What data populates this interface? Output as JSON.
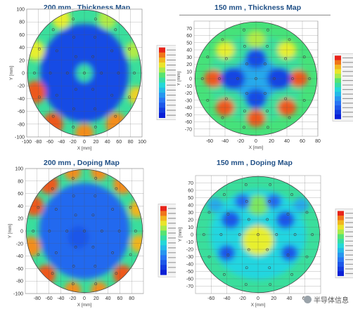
{
  "chart_data": [
    {
      "type": "heatmap",
      "title": "200 mm , Thickness Map",
      "xlabel": "X [mm]",
      "ylabel": "Y [mm]",
      "xlim": [
        -100,
        100
      ],
      "ylim": [
        -100,
        100
      ],
      "xticks": [
        -100,
        -80,
        -60,
        -40,
        -20,
        0,
        20,
        40,
        60,
        80,
        100
      ],
      "yticks": [
        -100,
        -80,
        -60,
        -40,
        -20,
        0,
        20,
        40,
        60,
        80,
        100
      ],
      "grid": true,
      "colorbar": "right",
      "hotspots": [
        {
          "x": 0,
          "y": 0,
          "value": 0.05,
          "r": 8
        },
        {
          "x": 0,
          "y": 0,
          "value": 0.55,
          "r": 14
        },
        {
          "x": -85,
          "y": -30,
          "value": 0.95,
          "r": 18
        },
        {
          "x": -55,
          "y": -80,
          "value": 0.95,
          "r": 18
        },
        {
          "x": 0,
          "y": -95,
          "value": 0.9,
          "r": 16
        },
        {
          "x": 55,
          "y": -80,
          "value": 0.9,
          "r": 18
        },
        {
          "x": 90,
          "y": -35,
          "value": 0.8,
          "r": 14
        },
        {
          "x": -85,
          "y": 35,
          "value": 0.75,
          "r": 16
        },
        {
          "x": -40,
          "y": 85,
          "value": 0.75,
          "r": 16
        },
        {
          "x": 40,
          "y": 85,
          "value": 0.7,
          "r": 16
        },
        {
          "x": 85,
          "y": 35,
          "value": 0.7,
          "r": 14
        }
      ]
    },
    {
      "type": "heatmap",
      "title": "150 mm , Thickness Map",
      "xlabel": "X [mm]",
      "ylabel": "Y [mm]",
      "xlim": [
        -80,
        80
      ],
      "ylim": [
        -80,
        80
      ],
      "xticks": [
        -60,
        -40,
        -20,
        0,
        20,
        40,
        60,
        80
      ],
      "yticks": [
        -70,
        -60,
        -50,
        -40,
        -30,
        -20,
        -10,
        0,
        10,
        20,
        30,
        40,
        50,
        60,
        70
      ],
      "grid": true,
      "colorbar": "right",
      "hotspots": [
        {
          "x": -55,
          "y": 0,
          "value": 0.95,
          "r": 12
        },
        {
          "x": 55,
          "y": 0,
          "value": 0.95,
          "r": 12
        },
        {
          "x": -40,
          "y": -40,
          "value": 0.95,
          "r": 12
        },
        {
          "x": 40,
          "y": -40,
          "value": 0.95,
          "r": 12
        },
        {
          "x": 0,
          "y": -55,
          "value": 0.95,
          "r": 12
        },
        {
          "x": -40,
          "y": 40,
          "value": 0.75,
          "r": 12
        },
        {
          "x": 40,
          "y": 40,
          "value": 0.75,
          "r": 12
        },
        {
          "x": 0,
          "y": 55,
          "value": 0.7,
          "r": 12
        },
        {
          "x": 0,
          "y": 0,
          "value": 0.35,
          "r": 30
        },
        {
          "x": -30,
          "y": 0,
          "value": 0.1,
          "r": 16
        },
        {
          "x": 30,
          "y": 0,
          "value": 0.1,
          "r": 16
        },
        {
          "x": 0,
          "y": 28,
          "value": 0.12,
          "r": 14
        },
        {
          "x": 0,
          "y": -28,
          "value": 0.12,
          "r": 14
        }
      ]
    },
    {
      "type": "heatmap",
      "title": "200 mm , Doping Map",
      "xlabel": "X [mm]",
      "ylabel": "Y [mm]",
      "xlim": [
        -100,
        100
      ],
      "ylim": [
        -100,
        100
      ],
      "xticks": [
        -80,
        -60,
        -40,
        -20,
        0,
        20,
        40,
        60,
        80
      ],
      "yticks": [
        -100,
        -80,
        -60,
        -40,
        -20,
        0,
        20,
        40,
        60,
        80,
        100
      ],
      "grid": true,
      "colorbar": "right",
      "hotspots": [
        {
          "x": -85,
          "y": 40,
          "value": 0.95,
          "r": 16
        },
        {
          "x": -60,
          "y": 75,
          "value": 0.95,
          "r": 16
        },
        {
          "x": -20,
          "y": 95,
          "value": 0.9,
          "r": 14
        },
        {
          "x": 25,
          "y": 95,
          "value": 0.9,
          "r": 14
        },
        {
          "x": 65,
          "y": 75,
          "value": 0.9,
          "r": 16
        },
        {
          "x": 90,
          "y": 35,
          "value": 0.85,
          "r": 14
        },
        {
          "x": -90,
          "y": -25,
          "value": 0.9,
          "r": 16
        },
        {
          "x": -65,
          "y": -70,
          "value": 0.95,
          "r": 16
        },
        {
          "x": -20,
          "y": -95,
          "value": 0.9,
          "r": 14
        },
        {
          "x": 25,
          "y": -95,
          "value": 0.9,
          "r": 14
        },
        {
          "x": 65,
          "y": -70,
          "value": 0.95,
          "r": 16
        },
        {
          "x": 92,
          "y": -20,
          "value": 0.85,
          "r": 14
        },
        {
          "x": -10,
          "y": -10,
          "value": 0.15,
          "r": 18
        }
      ]
    },
    {
      "type": "heatmap",
      "title": "150 mm , Doping Map",
      "xlabel": "X [mm]",
      "ylabel": "Y [mm]",
      "xlim": [
        -80,
        80
      ],
      "ylim": [
        -80,
        80
      ],
      "xticks": [
        -60,
        -40,
        -20,
        0,
        20,
        40,
        60
      ],
      "yticks": [
        -70,
        -60,
        -50,
        -40,
        -30,
        -20,
        -10,
        0,
        10,
        20,
        30,
        40,
        50,
        60,
        70
      ],
      "grid": true,
      "colorbar": "right",
      "hotspots": [
        {
          "x": 0,
          "y": 5,
          "value": 0.95,
          "r": 8
        },
        {
          "x": 0,
          "y": -18,
          "value": 1.0,
          "r": 9
        },
        {
          "x": 0,
          "y": -8,
          "value": 0.75,
          "r": 20
        },
        {
          "x": 0,
          "y": 40,
          "value": 0.65,
          "r": 14
        },
        {
          "x": -35,
          "y": 20,
          "value": 0.15,
          "r": 12
        },
        {
          "x": 35,
          "y": 20,
          "value": 0.15,
          "r": 12
        },
        {
          "x": -40,
          "y": -25,
          "value": 0.15,
          "r": 11
        },
        {
          "x": 40,
          "y": -25,
          "value": 0.15,
          "r": 11
        },
        {
          "x": -20,
          "y": 45,
          "value": 0.2,
          "r": 10
        },
        {
          "x": 20,
          "y": 45,
          "value": 0.2,
          "r": 10
        },
        {
          "x": -55,
          "y": 40,
          "value": 0.35,
          "r": 10
        },
        {
          "x": 55,
          "y": 40,
          "value": 0.35,
          "r": 10
        }
      ]
    }
  ],
  "watermark": {
    "text": "半导体信息",
    "icon": "wechat-icon"
  }
}
